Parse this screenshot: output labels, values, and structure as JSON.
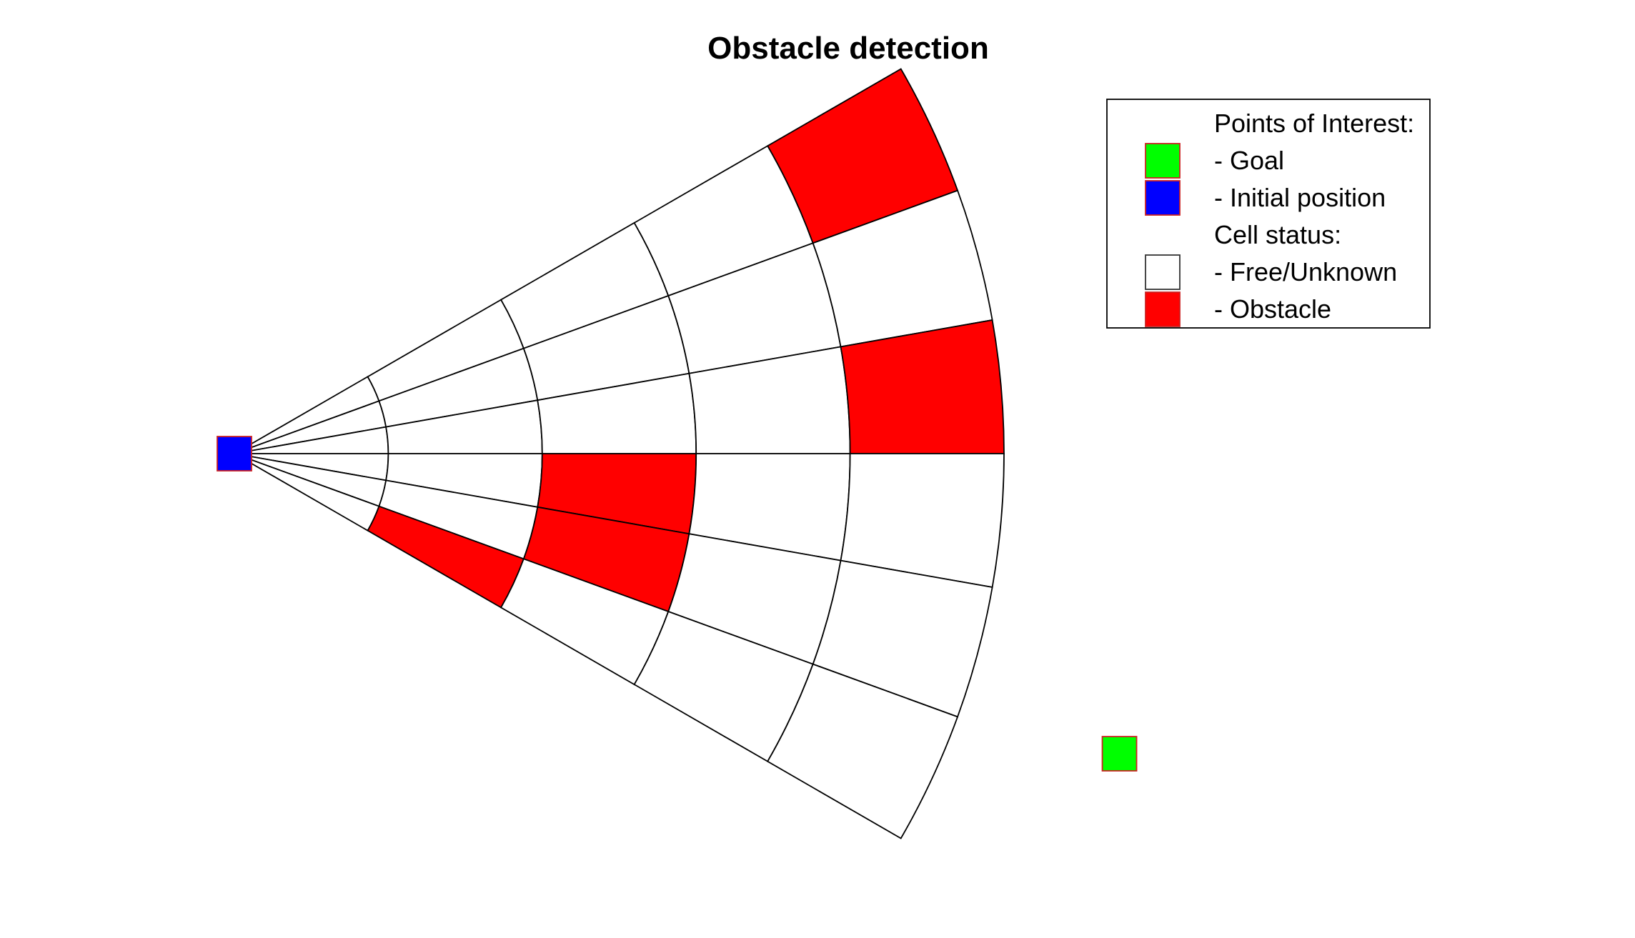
{
  "title": "Obstacle detection",
  "legend": {
    "entries": [
      {
        "key": "poi-heading",
        "label": "Points of Interest:",
        "color": null
      },
      {
        "key": "goal",
        "label": "- Goal",
        "color": "#00ff00"
      },
      {
        "key": "initial",
        "label": "- Initial position",
        "color": "#0000ff"
      },
      {
        "key": "cell-heading",
        "label": "Cell status:",
        "color": null
      },
      {
        "key": "free",
        "label": "- Free/Unknown",
        "color": "#ffffff"
      },
      {
        "key": "obstacle",
        "label": "- Obstacle",
        "color": "#ff0000"
      }
    ]
  },
  "colors": {
    "free": "#ffffff",
    "obstacle": "#ff0000",
    "goal": "#00ff00",
    "initial": "#0000ff",
    "marker_edge": "#cc2222",
    "grid_line": "#000000"
  },
  "sensor_grid": {
    "rings": 5,
    "sectors": 6,
    "field_of_view_deg": 60,
    "obstacle_cells": [
      {
        "ring": 2,
        "sector": 6
      },
      {
        "ring": 3,
        "sector": 4
      },
      {
        "ring": 3,
        "sector": 5
      },
      {
        "ring": 5,
        "sector": 3
      },
      {
        "ring": 5,
        "sector": 1
      }
    ]
  },
  "points": {
    "initial": {
      "x": 0,
      "y": 0
    },
    "goal": {
      "x": 5.75,
      "y": -1.95
    }
  }
}
